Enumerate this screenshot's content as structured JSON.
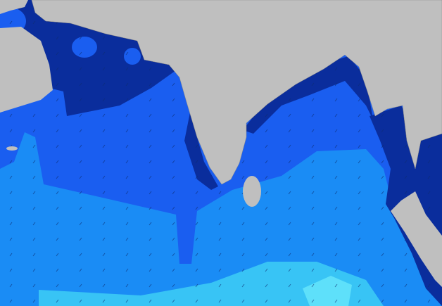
{
  "map": {
    "region": "",
    "colors": {
      "land": "#bfbfbf",
      "sea_low": "#1a8cf5",
      "sea_mid": "#1a5ef0",
      "sea_high": "#0a2d9c",
      "sea_lowest": "#38c4f5",
      "sea_min": "#5ee0fa"
    }
  }
}
